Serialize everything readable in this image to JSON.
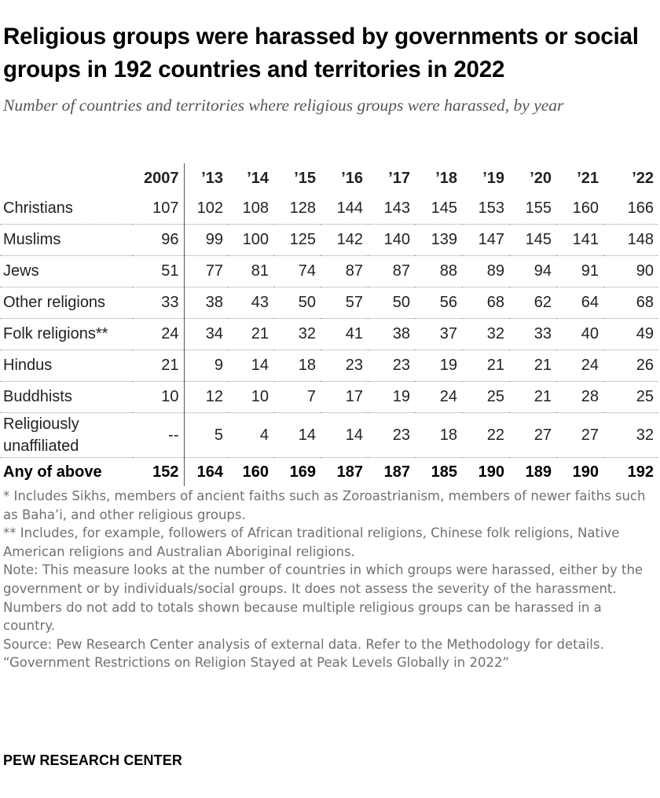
{
  "title": "Religious groups were harassed by governments or social groups in 192 countries and territories in 2022",
  "subtitle": "Number of countries and territories where religious groups were harassed, by year",
  "chart_data": {
    "type": "table",
    "columns": [
      "2007",
      "’13",
      "’14",
      "’15",
      "’16",
      "’17",
      "’18",
      "’19",
      "’20",
      "’21",
      "’22"
    ],
    "rows": [
      {
        "label": "Christians",
        "values": [
          "107",
          "102",
          "108",
          "128",
          "144",
          "143",
          "145",
          "153",
          "155",
          "160",
          "166"
        ]
      },
      {
        "label": "Muslims",
        "values": [
          "96",
          "99",
          "100",
          "125",
          "142",
          "140",
          "139",
          "147",
          "145",
          "141",
          "148"
        ]
      },
      {
        "label": "Jews",
        "values": [
          "51",
          "77",
          "81",
          "74",
          "87",
          "87",
          "88",
          "89",
          "94",
          "91",
          "90"
        ]
      },
      {
        "label": "Other religions",
        "values": [
          "33",
          "38",
          "43",
          "50",
          "57",
          "50",
          "56",
          "68",
          "62",
          "64",
          "68"
        ]
      },
      {
        "label": "Folk religions**",
        "values": [
          "24",
          "34",
          "21",
          "32",
          "41",
          "38",
          "37",
          "32",
          "33",
          "40",
          "49"
        ]
      },
      {
        "label": "Hindus",
        "values": [
          "21",
          "9",
          "14",
          "18",
          "23",
          "23",
          "19",
          "21",
          "21",
          "24",
          "26"
        ]
      },
      {
        "label": "Buddhists",
        "values": [
          "10",
          "12",
          "10",
          "7",
          "17",
          "19",
          "24",
          "25",
          "21",
          "28",
          "25"
        ]
      },
      {
        "label": "Religiously unaffiliated",
        "values": [
          "--",
          "5",
          "4",
          "14",
          "14",
          "23",
          "18",
          "22",
          "27",
          "27",
          "32"
        ]
      }
    ],
    "total": {
      "label": "Any of above",
      "values": [
        "152",
        "164",
        "160",
        "169",
        "187",
        "187",
        "185",
        "190",
        "189",
        "190",
        "192"
      ]
    }
  },
  "notes": [
    "* Includes Sikhs, members of ancient faiths such as Zoroastrianism, members of newer faiths such as Baha’i, and other religious groups.",
    "** Includes, for example, followers of African traditional religions, Chinese folk religions, Native American religions and Australian Aboriginal religions.",
    "Note: This measure looks at the number of countries in which groups were harassed, either by the government or by individuals/social groups. It does not assess the severity of the harassment. Numbers do not add to totals shown because multiple religious groups can be harassed in a country.",
    "Source: Pew Research Center analysis of external data. Refer to the Methodology for details.",
    "“Government Restrictions on Religion Stayed at Peak Levels Globally in 2022”"
  ],
  "logo": "PEW RESEARCH CENTER"
}
